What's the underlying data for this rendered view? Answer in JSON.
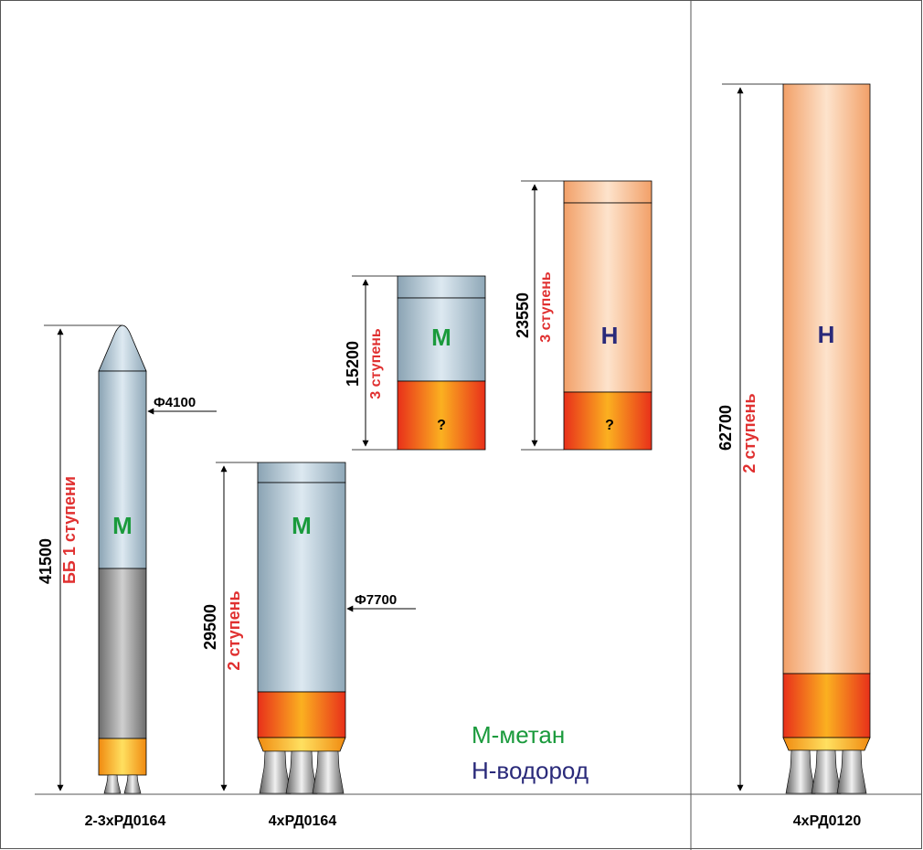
{
  "rockets": [
    {
      "name": "booster",
      "height": "41500",
      "stage_label": "ББ 1 ступени",
      "fuel": "М",
      "diameter": "Ф4100",
      "engines": "2-3хРД0164"
    },
    {
      "name": "second-stage-methane",
      "height": "29500",
      "stage_label": "2 ступень",
      "fuel": "М",
      "diameter": "Ф7700",
      "engines": "4хРД0164"
    },
    {
      "name": "third-stage-methane",
      "height": "15200",
      "stage_label": "3 ступень",
      "fuel": "М",
      "payload_mark": "?"
    },
    {
      "name": "third-stage-hydrogen",
      "height": "23550",
      "stage_label": "3 ступень",
      "fuel": "Н",
      "payload_mark": "?"
    },
    {
      "name": "second-stage-hydrogen",
      "height": "62700",
      "stage_label": "2 ступень",
      "fuel": "Н",
      "engines": "4хРД0120"
    }
  ],
  "legend": {
    "methane": "М-метан",
    "hydrogen": "Н-водород"
  },
  "colors": {
    "methane": "#1a9a3c",
    "hydrogen": "#2a2a7a",
    "stage_label": "#e03030",
    "frame": "#555555"
  }
}
